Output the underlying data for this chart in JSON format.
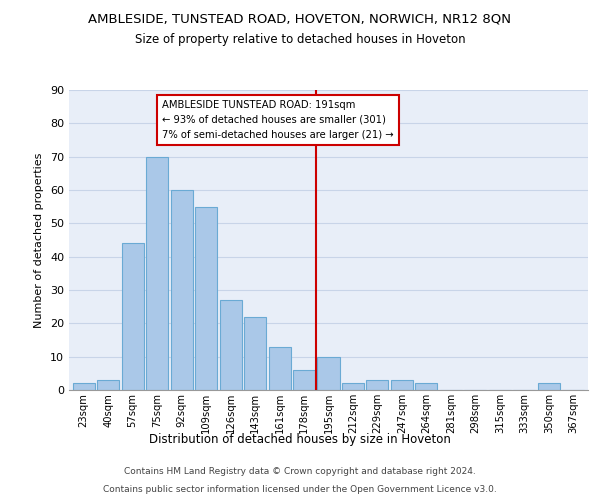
{
  "title": "AMBLESIDE, TUNSTEAD ROAD, HOVETON, NORWICH, NR12 8QN",
  "subtitle": "Size of property relative to detached houses in Hoveton",
  "xlabel": "Distribution of detached houses by size in Hoveton",
  "ylabel": "Number of detached properties",
  "categories": [
    "23sqm",
    "40sqm",
    "57sqm",
    "75sqm",
    "92sqm",
    "109sqm",
    "126sqm",
    "143sqm",
    "161sqm",
    "178sqm",
    "195sqm",
    "212sqm",
    "229sqm",
    "247sqm",
    "264sqm",
    "281sqm",
    "298sqm",
    "315sqm",
    "333sqm",
    "350sqm",
    "367sqm"
  ],
  "values": [
    2,
    3,
    44,
    70,
    60,
    55,
    27,
    22,
    13,
    6,
    10,
    2,
    3,
    3,
    2,
    0,
    0,
    0,
    0,
    2,
    0
  ],
  "bar_color": "#aac8e8",
  "bar_edge_color": "#6aaad4",
  "vline_x": 9.5,
  "property_line_label": "AMBLESIDE TUNSTEAD ROAD: 191sqm",
  "annotation_line1": "← 93% of detached houses are smaller (301)",
  "annotation_line2": "7% of semi-detached houses are larger (21) →",
  "annotation_box_color": "#ffffff",
  "annotation_box_edge_color": "#cc0000",
  "vline_color": "#cc0000",
  "ylim": [
    0,
    90
  ],
  "yticks": [
    0,
    10,
    20,
    30,
    40,
    50,
    60,
    70,
    80,
    90
  ],
  "grid_color": "#c8d4e8",
  "background_color": "#e8eef8",
  "footer1": "Contains HM Land Registry data © Crown copyright and database right 2024.",
  "footer2": "Contains public sector information licensed under the Open Government Licence v3.0."
}
